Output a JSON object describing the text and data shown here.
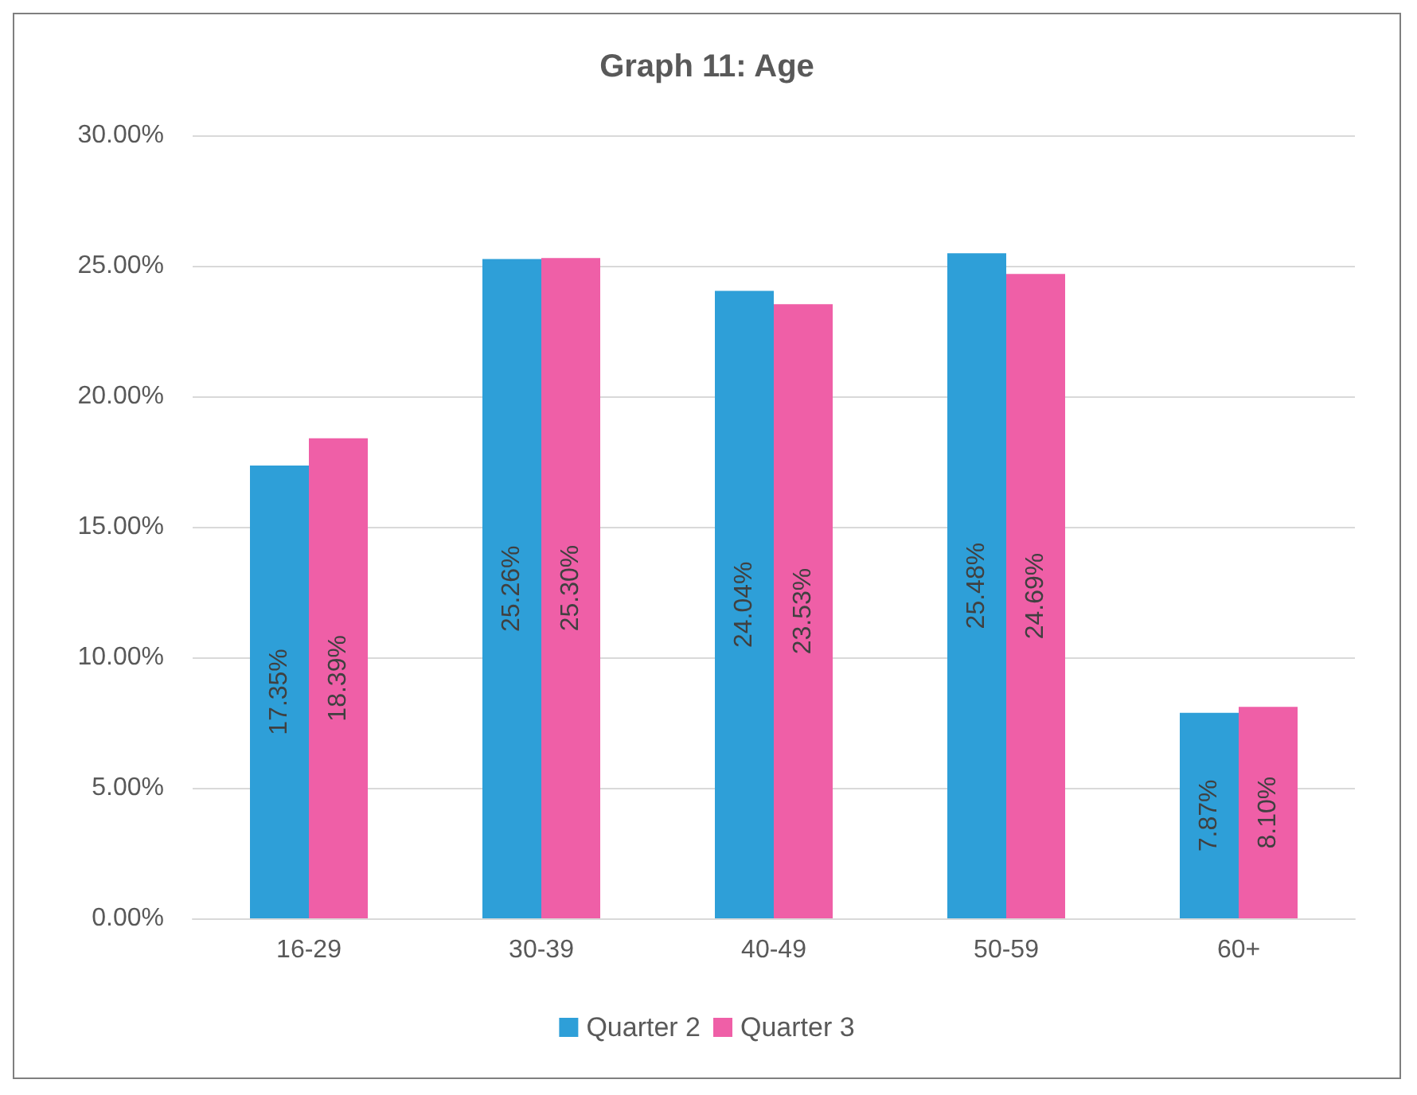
{
  "chart_data": {
    "type": "bar",
    "title": "Graph 11: Age",
    "categories": [
      "16-29",
      "30-39",
      "40-49",
      "50-59",
      "60+"
    ],
    "series": [
      {
        "name": "Quarter 2",
        "color": "#2e9fd8",
        "values": [
          17.35,
          25.26,
          24.04,
          25.48,
          7.87
        ],
        "value_labels": [
          "17.35%",
          "25.26%",
          "24.04%",
          "25.48%",
          "7.87%"
        ]
      },
      {
        "name": "Quarter 3",
        "color": "#ef5fa7",
        "values": [
          18.39,
          25.3,
          23.53,
          24.69,
          8.1
        ],
        "value_labels": [
          "18.39%",
          "25.30%",
          "23.53%",
          "24.69%",
          "8.10%"
        ]
      }
    ],
    "ylim": [
      0,
      30
    ],
    "yticks": [
      {
        "value": 0,
        "label": "0.00%"
      },
      {
        "value": 5,
        "label": "5.00%"
      },
      {
        "value": 10,
        "label": "10.00%"
      },
      {
        "value": 15,
        "label": "15.00%"
      },
      {
        "value": 20,
        "label": "20.00%"
      },
      {
        "value": 25,
        "label": "25.00%"
      },
      {
        "value": 30,
        "label": "30.00%"
      }
    ],
    "grid": "y",
    "legend": "bottom"
  }
}
